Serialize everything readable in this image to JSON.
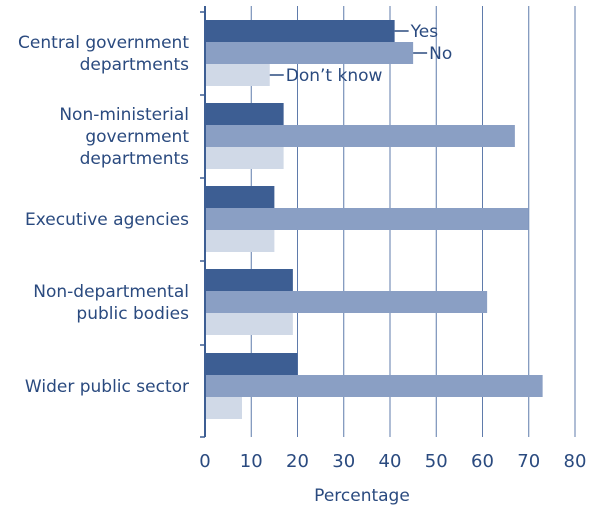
{
  "chart_data": {
    "type": "bar",
    "orientation": "horizontal",
    "categories": [
      [
        "Central government",
        "departments"
      ],
      [
        "Non-ministerial",
        "government",
        "departments"
      ],
      [
        "Executive agencies"
      ],
      [
        "Non-departmental",
        "public bodies"
      ],
      [
        "Wider public sector"
      ]
    ],
    "series": [
      {
        "name": "Yes",
        "color": "#3d5e93",
        "values": [
          41,
          17,
          15,
          19,
          20
        ]
      },
      {
        "name": "No",
        "color": "#8a9fc4",
        "values": [
          45,
          67,
          70,
          61,
          73
        ]
      },
      {
        "name": "Don’t know",
        "color": "#d0d9e7",
        "values": [
          14,
          17,
          15,
          19,
          8
        ]
      }
    ],
    "xlabel": "Percentage",
    "xlim": [
      0,
      80
    ],
    "xticks": [
      0,
      10,
      20,
      30,
      40,
      50,
      60,
      70,
      80
    ],
    "grid": "vertical",
    "legend": "inline-callouts"
  }
}
